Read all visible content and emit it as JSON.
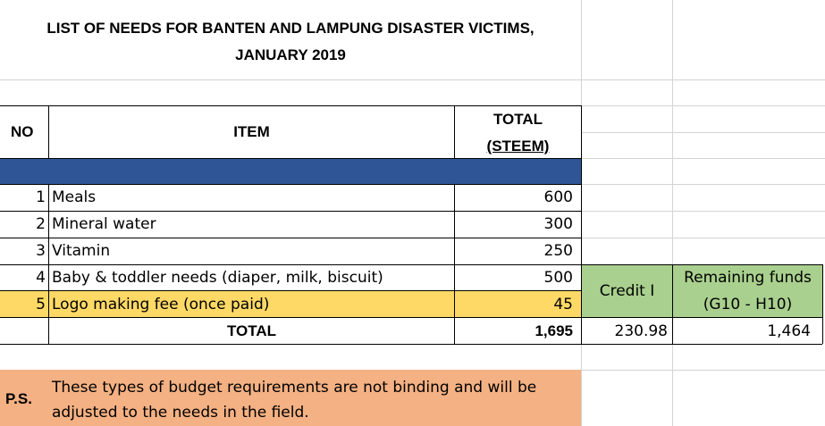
{
  "title": {
    "line1": "LIST OF NEEDS FOR BANTEN AND LAMPUNG DISASTER VICTIMS,",
    "line2": "JANUARY 2019"
  },
  "header": {
    "no": "NO",
    "item": "ITEM",
    "total_line1": "TOTAL",
    "total_line2": "(STEEM)"
  },
  "rows": [
    {
      "no": "1",
      "item": "Meals",
      "total": "600"
    },
    {
      "no": "2",
      "item": "Mineral water",
      "total": "300"
    },
    {
      "no": "3",
      "item": "Vitamin",
      "total": "250"
    },
    {
      "no": "4",
      "item": "Baby & toddler needs (diaper, milk, biscuit)",
      "total": "500"
    },
    {
      "no": "5",
      "item": "Logo making fee (once paid)",
      "total": "45"
    }
  ],
  "total_row": {
    "label": "TOTAL",
    "value": "1,695",
    "credit": "230.98",
    "remaining": "1,464"
  },
  "credit_header": "Credit I",
  "remaining_header": {
    "line1": "Remaining funds",
    "line2": "(G10 - H10)"
  },
  "ps": {
    "label": "P.S.",
    "line1": "These types of budget requirements are not binding and will be",
    "line2": "adjusted to the needs in the field."
  },
  "colors": {
    "band_blue": "#2f5597",
    "highlight_yellow": "#ffd966",
    "green": "#a9d08e",
    "orange": "#f4b183",
    "gridline": "#d4d4d4"
  }
}
